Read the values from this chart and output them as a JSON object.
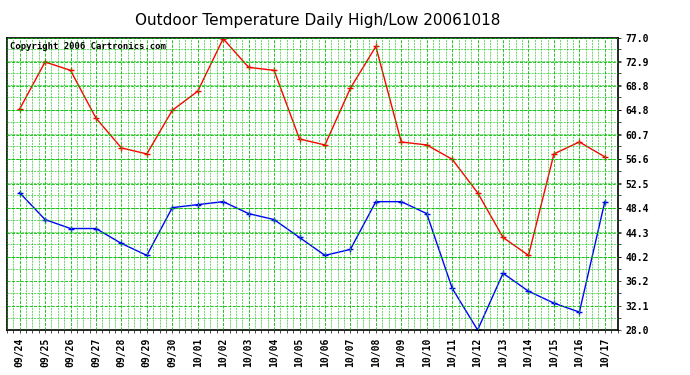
{
  "title": "Outdoor Temperature Daily High/Low 20061018",
  "copyright": "Copyright 2006 Cartronics.com",
  "dates": [
    "09/24",
    "09/25",
    "09/26",
    "09/27",
    "09/28",
    "09/29",
    "09/30",
    "10/01",
    "10/02",
    "10/03",
    "10/04",
    "10/05",
    "10/06",
    "10/07",
    "10/08",
    "10/09",
    "10/10",
    "10/11",
    "10/12",
    "10/13",
    "10/14",
    "10/15",
    "10/16",
    "10/17"
  ],
  "high_temps": [
    65.0,
    72.9,
    71.5,
    63.5,
    58.5,
    57.5,
    64.8,
    68.0,
    76.8,
    72.0,
    71.5,
    60.0,
    59.0,
    68.5,
    75.5,
    59.5,
    59.0,
    56.6,
    51.0,
    43.5,
    40.5,
    57.5,
    59.5,
    57.0
  ],
  "low_temps": [
    51.0,
    46.5,
    45.0,
    45.0,
    42.5,
    40.5,
    48.5,
    49.0,
    49.5,
    47.5,
    46.5,
    43.5,
    40.5,
    41.5,
    49.5,
    49.5,
    47.5,
    35.0,
    28.0,
    37.5,
    34.5,
    32.5,
    31.0,
    49.5
  ],
  "ylim_min": 28.0,
  "ylim_max": 77.0,
  "yticks": [
    28.0,
    32.1,
    36.2,
    40.2,
    44.3,
    48.4,
    52.5,
    56.6,
    60.7,
    64.8,
    68.8,
    72.9,
    77.0
  ],
  "high_color": "#ff0000",
  "low_color": "#0000ff",
  "marker": "+",
  "bg_color": "#ffffff",
  "plot_bg_color": "#ffffff",
  "grid_color": "#00bb00",
  "border_color": "#000000",
  "title_fontsize": 11,
  "copyright_fontsize": 6.5,
  "tick_fontsize": 7,
  "ytick_fontsize": 7
}
